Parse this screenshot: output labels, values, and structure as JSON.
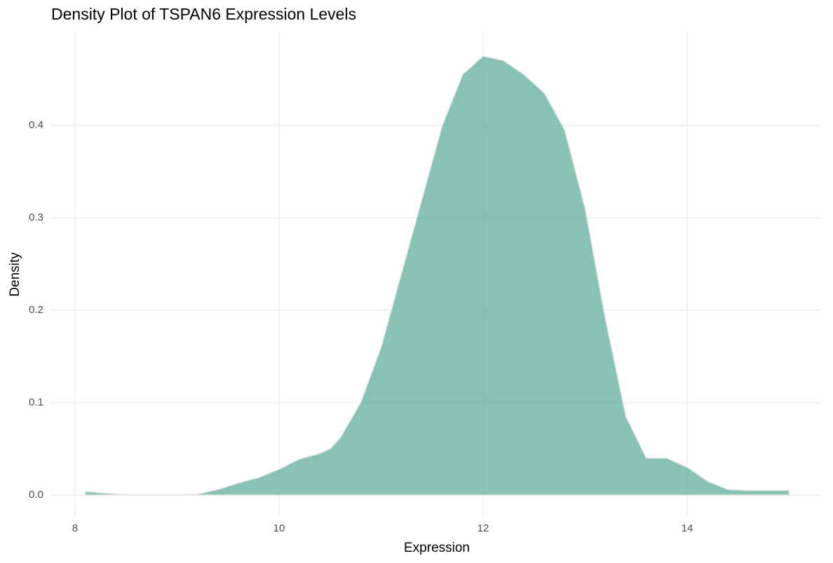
{
  "chart_data": {
    "type": "density",
    "title": "Density Plot of TSPAN6 Expression Levels",
    "x_label": "Expression",
    "y_label": "Density",
    "x": [
      8.1,
      8.3,
      8.5,
      8.7,
      9.0,
      9.2,
      9.4,
      9.6,
      9.8,
      10.0,
      10.2,
      10.4,
      10.5,
      10.6,
      10.8,
      11.0,
      11.2,
      11.4,
      11.6,
      11.8,
      12.0,
      12.2,
      12.4,
      12.6,
      12.8,
      13.0,
      13.2,
      13.4,
      13.6,
      13.8,
      14.0,
      14.2,
      14.4,
      14.6,
      15.0
    ],
    "values": [
      0.004,
      0.002,
      0.0005,
      0,
      0,
      0.001,
      0.006,
      0.013,
      0.019,
      0.028,
      0.039,
      0.045,
      0.05,
      0.062,
      0.1,
      0.16,
      0.24,
      0.32,
      0.4,
      0.455,
      0.475,
      0.47,
      0.455,
      0.435,
      0.395,
      0.31,
      0.19,
      0.085,
      0.04,
      0.04,
      0.03,
      0.015,
      0.006,
      0.005,
      0.005
    ],
    "color": "#69b3a2",
    "outline": "#e6e6e6",
    "xlim": [
      7.766,
      15.306
    ],
    "ylim": [
      -0.0235,
      0.5015
    ],
    "xticks": [
      8,
      10,
      12,
      14
    ],
    "yticks": [
      {
        "value": 0,
        "label": "0.0"
      },
      0.1,
      0.2,
      0.3,
      0.4
    ],
    "grid": true
  }
}
